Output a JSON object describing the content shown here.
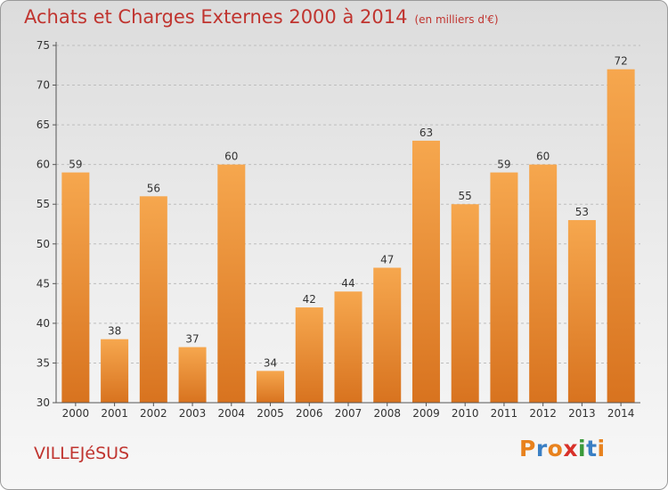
{
  "header": {
    "title": "Achats et Charges Externes 2000 à 2014",
    "unit": "(en milliers d'€)"
  },
  "footer": {
    "commune": "VILLEJéSUS",
    "logo": "Proxiti"
  },
  "colors": {
    "title": "#c0342f",
    "bar_top": "#f6a74e",
    "bar_bottom": "#d8731f",
    "logo_letters": [
      "#e8821e",
      "#3a7fc4",
      "#e8821e",
      "#d8312a",
      "#3a9a3a",
      "#3a7fc4",
      "#e8821e"
    ]
  },
  "chart_data": {
    "type": "bar",
    "categories": [
      "2000",
      "2001",
      "2002",
      "2003",
      "2004",
      "2005",
      "2006",
      "2007",
      "2008",
      "2009",
      "2010",
      "2011",
      "2012",
      "2013",
      "2014"
    ],
    "values": [
      59,
      38,
      56,
      37,
      60,
      34,
      42,
      44,
      47,
      63,
      55,
      59,
      60,
      53,
      72
    ],
    "title": "Achats et Charges Externes 2000 à 2014",
    "ylim": [
      30,
      75
    ],
    "yticks": [
      30,
      35,
      40,
      45,
      50,
      55,
      60,
      65,
      70,
      75
    ],
    "grid": true,
    "data_labels": true
  }
}
